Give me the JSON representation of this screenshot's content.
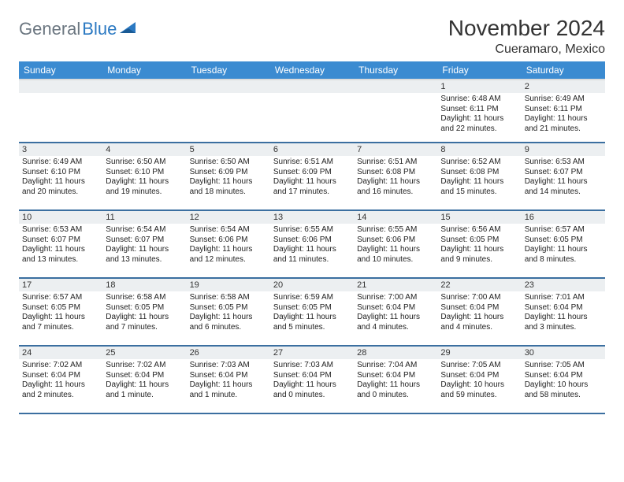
{
  "logo": {
    "part1": "General",
    "part2": "Blue"
  },
  "title": "November 2024",
  "location": "Cueramaro, Mexico",
  "colors": {
    "header_bg": "#3b8bd1",
    "row_divider": "#3b6fa0",
    "daynum_bg": "#eceff1",
    "logo_blue": "#2b79c2",
    "logo_gray": "#6b7680"
  },
  "weekdays": [
    "Sunday",
    "Monday",
    "Tuesday",
    "Wednesday",
    "Thursday",
    "Friday",
    "Saturday"
  ],
  "weeks": [
    [
      {
        "num": "",
        "sunrise": "",
        "sunset": "",
        "daylight": ""
      },
      {
        "num": "",
        "sunrise": "",
        "sunset": "",
        "daylight": ""
      },
      {
        "num": "",
        "sunrise": "",
        "sunset": "",
        "daylight": ""
      },
      {
        "num": "",
        "sunrise": "",
        "sunset": "",
        "daylight": ""
      },
      {
        "num": "",
        "sunrise": "",
        "sunset": "",
        "daylight": ""
      },
      {
        "num": "1",
        "sunrise": "Sunrise: 6:48 AM",
        "sunset": "Sunset: 6:11 PM",
        "daylight": "Daylight: 11 hours and 22 minutes."
      },
      {
        "num": "2",
        "sunrise": "Sunrise: 6:49 AM",
        "sunset": "Sunset: 6:11 PM",
        "daylight": "Daylight: 11 hours and 21 minutes."
      }
    ],
    [
      {
        "num": "3",
        "sunrise": "Sunrise: 6:49 AM",
        "sunset": "Sunset: 6:10 PM",
        "daylight": "Daylight: 11 hours and 20 minutes."
      },
      {
        "num": "4",
        "sunrise": "Sunrise: 6:50 AM",
        "sunset": "Sunset: 6:10 PM",
        "daylight": "Daylight: 11 hours and 19 minutes."
      },
      {
        "num": "5",
        "sunrise": "Sunrise: 6:50 AM",
        "sunset": "Sunset: 6:09 PM",
        "daylight": "Daylight: 11 hours and 18 minutes."
      },
      {
        "num": "6",
        "sunrise": "Sunrise: 6:51 AM",
        "sunset": "Sunset: 6:09 PM",
        "daylight": "Daylight: 11 hours and 17 minutes."
      },
      {
        "num": "7",
        "sunrise": "Sunrise: 6:51 AM",
        "sunset": "Sunset: 6:08 PM",
        "daylight": "Daylight: 11 hours and 16 minutes."
      },
      {
        "num": "8",
        "sunrise": "Sunrise: 6:52 AM",
        "sunset": "Sunset: 6:08 PM",
        "daylight": "Daylight: 11 hours and 15 minutes."
      },
      {
        "num": "9",
        "sunrise": "Sunrise: 6:53 AM",
        "sunset": "Sunset: 6:07 PM",
        "daylight": "Daylight: 11 hours and 14 minutes."
      }
    ],
    [
      {
        "num": "10",
        "sunrise": "Sunrise: 6:53 AM",
        "sunset": "Sunset: 6:07 PM",
        "daylight": "Daylight: 11 hours and 13 minutes."
      },
      {
        "num": "11",
        "sunrise": "Sunrise: 6:54 AM",
        "sunset": "Sunset: 6:07 PM",
        "daylight": "Daylight: 11 hours and 13 minutes."
      },
      {
        "num": "12",
        "sunrise": "Sunrise: 6:54 AM",
        "sunset": "Sunset: 6:06 PM",
        "daylight": "Daylight: 11 hours and 12 minutes."
      },
      {
        "num": "13",
        "sunrise": "Sunrise: 6:55 AM",
        "sunset": "Sunset: 6:06 PM",
        "daylight": "Daylight: 11 hours and 11 minutes."
      },
      {
        "num": "14",
        "sunrise": "Sunrise: 6:55 AM",
        "sunset": "Sunset: 6:06 PM",
        "daylight": "Daylight: 11 hours and 10 minutes."
      },
      {
        "num": "15",
        "sunrise": "Sunrise: 6:56 AM",
        "sunset": "Sunset: 6:05 PM",
        "daylight": "Daylight: 11 hours and 9 minutes."
      },
      {
        "num": "16",
        "sunrise": "Sunrise: 6:57 AM",
        "sunset": "Sunset: 6:05 PM",
        "daylight": "Daylight: 11 hours and 8 minutes."
      }
    ],
    [
      {
        "num": "17",
        "sunrise": "Sunrise: 6:57 AM",
        "sunset": "Sunset: 6:05 PM",
        "daylight": "Daylight: 11 hours and 7 minutes."
      },
      {
        "num": "18",
        "sunrise": "Sunrise: 6:58 AM",
        "sunset": "Sunset: 6:05 PM",
        "daylight": "Daylight: 11 hours and 7 minutes."
      },
      {
        "num": "19",
        "sunrise": "Sunrise: 6:58 AM",
        "sunset": "Sunset: 6:05 PM",
        "daylight": "Daylight: 11 hours and 6 minutes."
      },
      {
        "num": "20",
        "sunrise": "Sunrise: 6:59 AM",
        "sunset": "Sunset: 6:05 PM",
        "daylight": "Daylight: 11 hours and 5 minutes."
      },
      {
        "num": "21",
        "sunrise": "Sunrise: 7:00 AM",
        "sunset": "Sunset: 6:04 PM",
        "daylight": "Daylight: 11 hours and 4 minutes."
      },
      {
        "num": "22",
        "sunrise": "Sunrise: 7:00 AM",
        "sunset": "Sunset: 6:04 PM",
        "daylight": "Daylight: 11 hours and 4 minutes."
      },
      {
        "num": "23",
        "sunrise": "Sunrise: 7:01 AM",
        "sunset": "Sunset: 6:04 PM",
        "daylight": "Daylight: 11 hours and 3 minutes."
      }
    ],
    [
      {
        "num": "24",
        "sunrise": "Sunrise: 7:02 AM",
        "sunset": "Sunset: 6:04 PM",
        "daylight": "Daylight: 11 hours and 2 minutes."
      },
      {
        "num": "25",
        "sunrise": "Sunrise: 7:02 AM",
        "sunset": "Sunset: 6:04 PM",
        "daylight": "Daylight: 11 hours and 1 minute."
      },
      {
        "num": "26",
        "sunrise": "Sunrise: 7:03 AM",
        "sunset": "Sunset: 6:04 PM",
        "daylight": "Daylight: 11 hours and 1 minute."
      },
      {
        "num": "27",
        "sunrise": "Sunrise: 7:03 AM",
        "sunset": "Sunset: 6:04 PM",
        "daylight": "Daylight: 11 hours and 0 minutes."
      },
      {
        "num": "28",
        "sunrise": "Sunrise: 7:04 AM",
        "sunset": "Sunset: 6:04 PM",
        "daylight": "Daylight: 11 hours and 0 minutes."
      },
      {
        "num": "29",
        "sunrise": "Sunrise: 7:05 AM",
        "sunset": "Sunset: 6:04 PM",
        "daylight": "Daylight: 10 hours and 59 minutes."
      },
      {
        "num": "30",
        "sunrise": "Sunrise: 7:05 AM",
        "sunset": "Sunset: 6:04 PM",
        "daylight": "Daylight: 10 hours and 58 minutes."
      }
    ]
  ]
}
